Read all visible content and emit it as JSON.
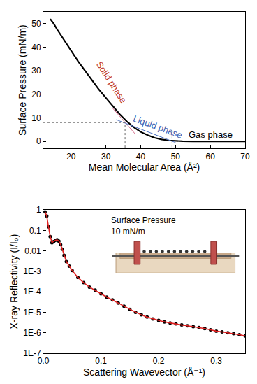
{
  "chart_data": [
    {
      "type": "line",
      "x_label": "Mean Molecular Area (Å²)",
      "y_label": "Surface Pressure (mN/m)",
      "xlim": [
        12,
        70
      ],
      "ylim": [
        -3,
        55
      ],
      "xticks": [
        20,
        30,
        40,
        50,
        60,
        70
      ],
      "yticks": [
        0,
        10,
        20,
        30,
        40,
        50
      ],
      "grid": false,
      "color": "#000000",
      "x": [
        14,
        15,
        16,
        18,
        20,
        22,
        24,
        26,
        28,
        30,
        32,
        34,
        36,
        38,
        40,
        42,
        44,
        46,
        48,
        50,
        52,
        55,
        60,
        65,
        70
      ],
      "values": [
        52,
        50,
        47.5,
        43,
        38.5,
        34,
        30,
        26,
        22,
        18.5,
        15,
        11.5,
        8.5,
        6,
        4,
        2.6,
        1.5,
        0.8,
        0.4,
        0.2,
        0.05,
        0,
        0,
        0,
        0
      ],
      "annotations": [
        {
          "text": "Solid phase",
          "x": 31.5,
          "y": 25,
          "color": "#c0392b"
        },
        {
          "text": "Liquid phase",
          "x": 45,
          "y": 6,
          "color": "#3a5fb0"
        },
        {
          "text": "Gas phase",
          "x": 60,
          "y": 3,
          "color": "#000000"
        }
      ],
      "guides": [
        {
          "x": 35.5,
          "y": 8
        },
        {
          "x": 49,
          "y": 2
        }
      ],
      "fit_lines": [
        {
          "x": [
            32,
            38.5
          ],
          "y": [
            14,
            3
          ],
          "color": "#d46a8a"
        },
        {
          "x": [
            33,
            50
          ],
          "y": [
            9.2,
            -0.5
          ],
          "color": "#4a6fc0"
        }
      ]
    },
    {
      "type": "scatter",
      "x_label": "Scattering Wavevector (Å⁻¹)",
      "y_label": "X-ray Reflectivity (I/I₀)",
      "log": "y",
      "xlim": [
        0,
        0.35
      ],
      "ylim": [
        1e-07,
        1
      ],
      "xticks": [
        {
          "value": 0,
          "label": "0.0"
        },
        0.1,
        0.2,
        0.3
      ],
      "yticks": [
        {
          "value": 1e-07,
          "label": "1E-7"
        },
        {
          "value": 1e-06,
          "label": "1E-6"
        },
        {
          "value": 1e-05,
          "label": "1E-5"
        },
        {
          "value": 0.0001,
          "label": "1E-4"
        },
        {
          "value": 0.001,
          "label": "1E-3"
        },
        0.01,
        0.1,
        1
      ],
      "grid": false,
      "inset_text": [
        "Surface Pressure",
        "10 mN/m"
      ],
      "x": [
        0.003,
        0.006,
        0.009,
        0.012,
        0.015,
        0.018,
        0.021,
        0.024,
        0.027,
        0.03,
        0.033,
        0.036,
        0.04,
        0.045,
        0.05,
        0.06,
        0.07,
        0.08,
        0.09,
        0.1,
        0.11,
        0.12,
        0.13,
        0.14,
        0.15,
        0.16,
        0.17,
        0.18,
        0.19,
        0.2,
        0.21,
        0.22,
        0.23,
        0.24,
        0.25,
        0.26,
        0.27,
        0.28,
        0.29,
        0.3,
        0.31,
        0.32,
        0.33,
        0.34,
        0.35
      ],
      "series": [
        {
          "type": "scatter",
          "marker": "circle",
          "color": "#000000",
          "values": [
            0.8,
            0.5,
            0.15,
            0.05,
            0.025,
            0.028,
            0.033,
            0.035,
            0.03,
            0.02,
            0.012,
            0.006,
            0.003,
            0.0018,
            0.0011,
            0.0005,
            0.00028,
            0.00017,
            0.00012,
            8e-05,
            5.5e-05,
            4e-05,
            2.8e-05,
            2e-05,
            1.4e-05,
            1e-05,
            7.5e-06,
            5.8e-06,
            4.7e-06,
            4e-06,
            3.4e-06,
            3e-06,
            2.7e-06,
            2.4e-06,
            2.2e-06,
            2e-06,
            1.8e-06,
            1.6e-06,
            1.4e-06,
            1.2e-06,
            1.1e-06,
            1e-06,
            9e-07,
            8e-07,
            7e-07
          ]
        },
        {
          "type": "line",
          "line_style": "solid",
          "color": "#e02020",
          "values": [
            0.8,
            0.5,
            0.15,
            0.05,
            0.026,
            0.029,
            0.033,
            0.034,
            0.03,
            0.021,
            0.012,
            0.0062,
            0.003,
            0.0018,
            0.0011,
            0.0005,
            0.00028,
            0.00017,
            0.00012,
            8e-05,
            5.5e-05,
            4e-05,
            2.8e-05,
            2e-05,
            1.4e-05,
            1e-05,
            7.5e-06,
            5.8e-06,
            4.7e-06,
            4e-06,
            3.4e-06,
            3e-06,
            2.7e-06,
            2.4e-06,
            2.2e-06,
            2e-06,
            1.8e-06,
            1.6e-06,
            1.4e-06,
            1.2e-06,
            1.1e-06,
            1e-06,
            9e-07,
            8e-07,
            7e-07
          ]
        }
      ]
    }
  ]
}
